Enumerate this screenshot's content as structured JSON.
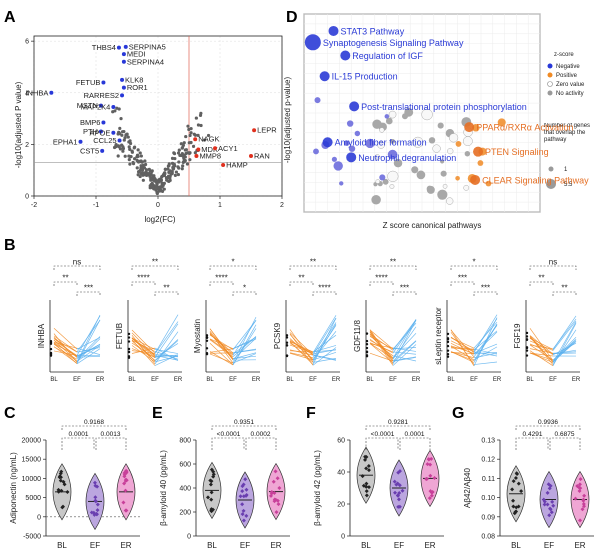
{
  "panel_labels": {
    "A": "A",
    "B": "B",
    "C": "C",
    "D": "D",
    "E": "E",
    "F": "F",
    "G": "G"
  },
  "colors": {
    "negative": "#2838d8",
    "positive": "#e0301e",
    "orange": "#f08a24",
    "blue": "#5ab0ee",
    "violin_grey": "#c8c8c8",
    "violin_purple": "#bba6df",
    "violin_pink": "#efa6d4"
  },
  "chart_data": [
    {
      "panel": "A",
      "type": "scatter",
      "xlabel": "log2(FC)",
      "ylabel": "-log10(adjusted P value)",
      "xlim": [
        -2,
        2
      ],
      "ylim": [
        0,
        6.2
      ],
      "xticks": [
        "-2",
        "-1",
        "0",
        "1",
        "2"
      ],
      "yticks": [
        "0",
        "2",
        "4",
        "6"
      ],
      "threshold_x": 0.5,
      "threshold_y": 1.3,
      "labeled_points": [
        {
          "label": "THBS4",
          "x": -0.63,
          "y": 5.75,
          "direction": "negative"
        },
        {
          "label": "SERPINA5",
          "x": -0.52,
          "y": 5.78,
          "direction": "negative"
        },
        {
          "label": "MEDI",
          "x": -0.55,
          "y": 5.5,
          "direction": "negative"
        },
        {
          "label": "SERPINA4",
          "x": -0.55,
          "y": 5.2,
          "direction": "negative"
        },
        {
          "label": "KLK8",
          "x": -0.58,
          "y": 4.5,
          "direction": "negative"
        },
        {
          "label": "FETUB",
          "x": -0.88,
          "y": 4.4,
          "direction": "negative"
        },
        {
          "label": "ROR1",
          "x": -0.55,
          "y": 4.2,
          "direction": "negative"
        },
        {
          "label": "INHBA",
          "x": -1.72,
          "y": 4.0,
          "direction": "negative"
        },
        {
          "label": "RARRES2",
          "x": -0.58,
          "y": 3.9,
          "direction": "negative"
        },
        {
          "label": "MSTN",
          "x": -0.92,
          "y": 3.5,
          "direction": "negative"
        },
        {
          "label": "MAP2K4",
          "x": -0.72,
          "y": 3.45,
          "direction": "negative"
        },
        {
          "label": "BMP6",
          "x": -0.88,
          "y": 2.85,
          "direction": "negative"
        },
        {
          "label": "PTH",
          "x": -0.92,
          "y": 2.5,
          "direction": "negative"
        },
        {
          "label": "APOE",
          "x": -0.72,
          "y": 2.45,
          "direction": "negative"
        },
        {
          "label": "CCL25",
          "x": -0.62,
          "y": 2.15,
          "direction": "negative"
        },
        {
          "label": "EPHA1",
          "x": -1.25,
          "y": 2.1,
          "direction": "negative"
        },
        {
          "label": "CST5",
          "x": -0.9,
          "y": 1.75,
          "direction": "negative"
        },
        {
          "label": "NAGK",
          "x": 0.6,
          "y": 2.2,
          "direction": "positive"
        },
        {
          "label": "LEPR",
          "x": 1.55,
          "y": 2.55,
          "direction": "positive"
        },
        {
          "label": "MDK",
          "x": 0.65,
          "y": 1.8,
          "direction": "positive"
        },
        {
          "label": "ACY1",
          "x": 0.92,
          "y": 1.85,
          "direction": "positive"
        },
        {
          "label": "MMP8",
          "x": 0.62,
          "y": 1.55,
          "direction": "positive"
        },
        {
          "label": "HAMP",
          "x": 1.05,
          "y": 1.2,
          "direction": "positive"
        },
        {
          "label": "RAN",
          "x": 1.5,
          "y": 1.55,
          "direction": "positive"
        }
      ]
    },
    {
      "panel": "D",
      "type": "scatter",
      "xlabel": "Z score canonical pathways",
      "ylabel": "-log10(adjusted p-value)",
      "legend": {
        "title": "z-score",
        "items": [
          "Negative",
          "Positive",
          "Zero value",
          "No activity"
        ],
        "size_title": "Number of genes that overlap the pathway",
        "size_values": [
          "1",
          "5.5"
        ]
      },
      "pathways": [
        {
          "label": "STAT3 Pathway",
          "z": -3.0,
          "y": 9.6,
          "kind": "negative"
        },
        {
          "label": "Synaptogenesis Signaling Pathway",
          "z": -3.7,
          "y": 9.0,
          "kind": "negative"
        },
        {
          "label": "Regulation of IGF",
          "z": -2.6,
          "y": 8.3,
          "kind": "negative"
        },
        {
          "label": "IL-15 Production",
          "z": -3.3,
          "y": 7.2,
          "kind": "negative"
        },
        {
          "label": "Post-translational protein phosphorylation",
          "z": -2.3,
          "y": 5.6,
          "kind": "negative"
        },
        {
          "label": "Amyloid fiber formation",
          "z": -3.2,
          "y": 3.7,
          "kind": "negative"
        },
        {
          "label": "Neutrophil degranulation",
          "z": -2.4,
          "y": 2.9,
          "kind": "negative"
        },
        {
          "label": "PPARα/RXRα Activation",
          "z": 1.6,
          "y": 4.5,
          "kind": "positive"
        },
        {
          "label": "PTEN Signaling",
          "z": 1.9,
          "y": 3.2,
          "kind": "positive"
        },
        {
          "label": "CLEAR Signaling Pathway",
          "z": 1.8,
          "y": 1.7,
          "kind": "positive"
        }
      ]
    },
    {
      "panel": "B",
      "type": "line",
      "categories": [
        "BL",
        "EF",
        "ER"
      ],
      "series": [
        {
          "name": "INHBA",
          "sig": [
            {
              "pair": [
                "BL",
                "ER"
              ],
              "label": "ns"
            },
            {
              "pair": [
                "BL",
                "EF"
              ],
              "label": "**"
            },
            {
              "pair": [
                "EF",
                "ER"
              ],
              "label": "***"
            }
          ]
        },
        {
          "name": "FETUB",
          "sig": [
            {
              "pair": [
                "BL",
                "ER"
              ],
              "label": "**"
            },
            {
              "pair": [
                "BL",
                "EF"
              ],
              "label": "****"
            },
            {
              "pair": [
                "EF",
                "ER"
              ],
              "label": "**"
            }
          ]
        },
        {
          "name": "Myostatin",
          "sig": [
            {
              "pair": [
                "BL",
                "ER"
              ],
              "label": "*"
            },
            {
              "pair": [
                "BL",
                "EF"
              ],
              "label": "****"
            },
            {
              "pair": [
                "EF",
                "ER"
              ],
              "label": "*"
            }
          ]
        },
        {
          "name": "PCSK9",
          "sig": [
            {
              "pair": [
                "BL",
                "ER"
              ],
              "label": "**"
            },
            {
              "pair": [
                "BL",
                "EF"
              ],
              "label": "**"
            },
            {
              "pair": [
                "EF",
                "ER"
              ],
              "label": "****"
            }
          ]
        },
        {
          "name": "GDF11/8",
          "sig": [
            {
              "pair": [
                "BL",
                "ER"
              ],
              "label": "**"
            },
            {
              "pair": [
                "BL",
                "EF"
              ],
              "label": "****"
            },
            {
              "pair": [
                "EF",
                "ER"
              ],
              "label": "***"
            }
          ]
        },
        {
          "name": "sLeptin receptor",
          "sig": [
            {
              "pair": [
                "BL",
                "ER"
              ],
              "label": "*"
            },
            {
              "pair": [
                "BL",
                "EF"
              ],
              "label": "***"
            },
            {
              "pair": [
                "EF",
                "ER"
              ],
              "label": "***"
            }
          ]
        },
        {
          "name": "FGF19",
          "sig": [
            {
              "pair": [
                "BL",
                "ER"
              ],
              "label": "ns"
            },
            {
              "pair": [
                "BL",
                "EF"
              ],
              "label": "**"
            },
            {
              "pair": [
                "EF",
                "ER"
              ],
              "label": "**"
            }
          ]
        }
      ]
    },
    {
      "panel": "C",
      "type": "scatter",
      "ylabel": "Adiponectin  (ng/mL)",
      "categories": [
        "BL",
        "EF",
        "ER"
      ],
      "ylim": [
        -5000,
        20000
      ],
      "yticks": [
        "-5000",
        "0",
        "5000",
        "10000",
        "15000",
        "20000"
      ],
      "medians": [
        6500,
        4000,
        6500
      ],
      "pvalues": {
        "bl_er": "0.9168",
        "bl_ef": "0.0001",
        "ef_er": "0.0013"
      }
    },
    {
      "panel": "E",
      "type": "scatter",
      "ylabel": "β-amyloid 40  (pg/mL)",
      "categories": [
        "BL",
        "EF",
        "ER"
      ],
      "ylim": [
        0,
        800
      ],
      "yticks": [
        "0",
        "200",
        "400",
        "600",
        "800"
      ],
      "medians": [
        380,
        300,
        370
      ],
      "pvalues": {
        "bl_er": "0.9351",
        "bl_ef": "<0.0001",
        "ef_er": "0.0002"
      }
    },
    {
      "panel": "F",
      "type": "scatter",
      "ylabel": "β-amyloid 42 (pg/mL)",
      "categories": [
        "BL",
        "EF",
        "ER"
      ],
      "ylim": [
        0,
        60
      ],
      "yticks": [
        "0",
        "20",
        "40",
        "60"
      ],
      "medians": [
        38,
        30,
        36
      ],
      "pvalues": {
        "bl_er": "0.9281",
        "bl_ef": "<0.0001",
        "ef_er": "0.0001"
      }
    },
    {
      "panel": "G",
      "type": "scatter",
      "ylabel": "Aβ42/Aβ40",
      "categories": [
        "BL",
        "EF",
        "ER"
      ],
      "ylim": [
        0.08,
        0.13
      ],
      "yticks": [
        "0.08",
        "0.09",
        "0.10",
        "0.11",
        "0.12",
        "0.13"
      ],
      "medians": [
        0.102,
        0.099,
        0.099
      ],
      "pvalues": {
        "bl_er": "0.9936",
        "bl_ef": "0.4291",
        "ef_er": "0.6875"
      }
    }
  ]
}
